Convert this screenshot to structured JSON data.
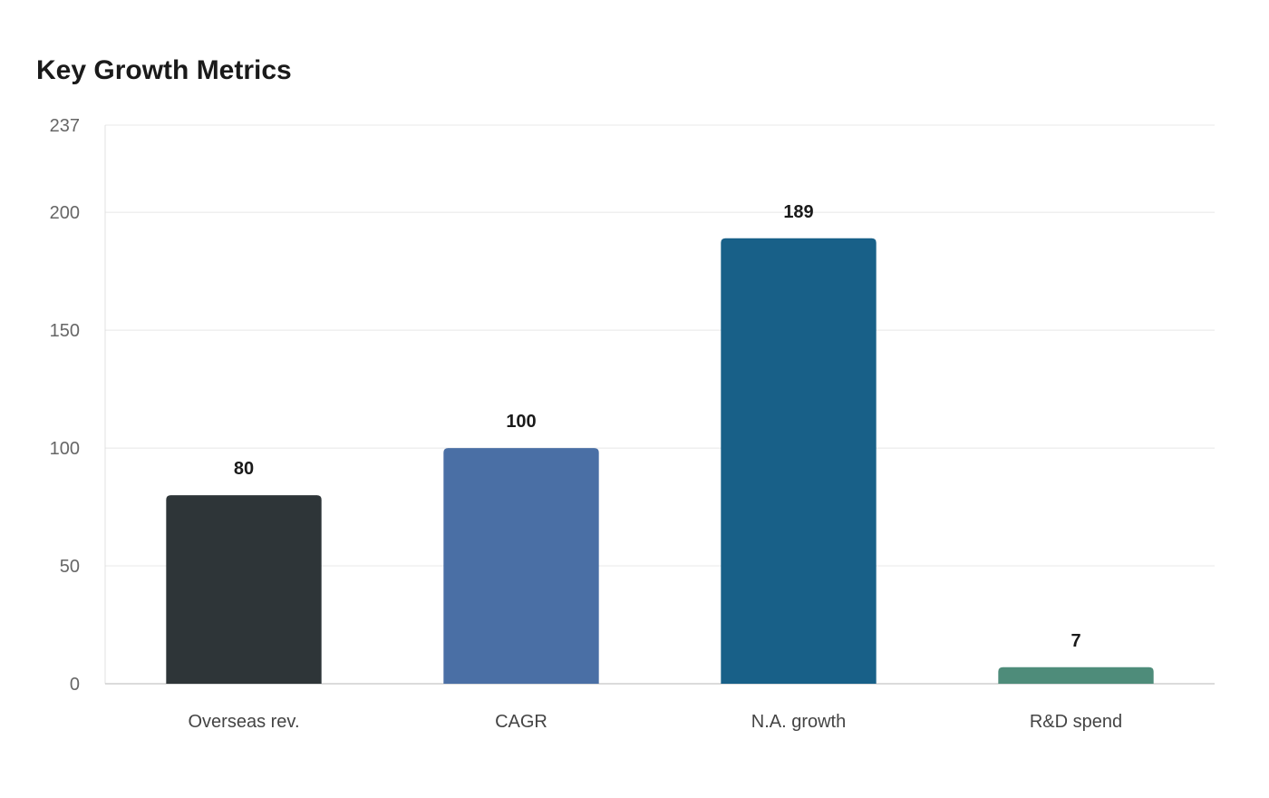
{
  "chart_data": {
    "type": "bar",
    "title": "Key Growth Metrics",
    "categories": [
      "Overseas rev.",
      "CAGR",
      "N.A. growth",
      "R&D spend"
    ],
    "values": [
      80,
      100,
      189,
      7
    ],
    "colors": [
      "#2e3538",
      "#4a6fa5",
      "#186088",
      "#4e8c7a"
    ],
    "ylim": [
      0,
      237
    ],
    "yticks": [
      0,
      50,
      100,
      150,
      200,
      237
    ],
    "grid": true,
    "xlabel": "",
    "ylabel": ""
  }
}
